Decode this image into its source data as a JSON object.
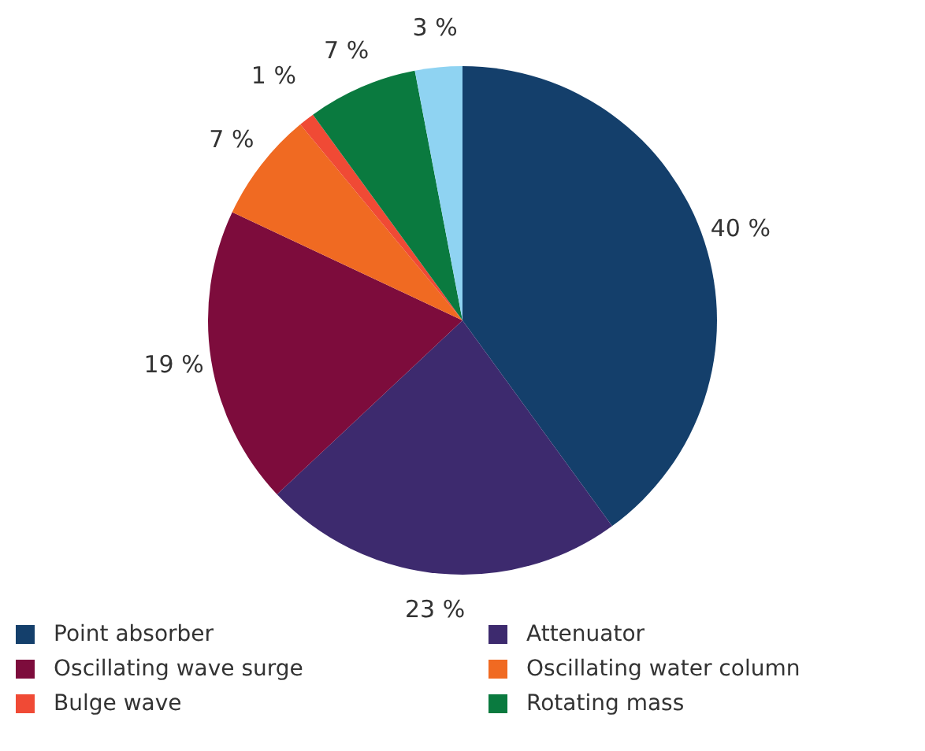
{
  "chart_data": {
    "type": "pie",
    "categories": [
      "Point absorber",
      "Attenuator",
      "Oscillating wave surge",
      "Oscillating water column",
      "Bulge wave",
      "Rotating mass",
      null
    ],
    "values": [
      40,
      23,
      19,
      7,
      1,
      7,
      3
    ],
    "colors": [
      "#143f6b",
      "#3d2a6e",
      "#7d0c3c",
      "#f06a22",
      "#f04a35",
      "#0a7a3f",
      "#8fd3f2"
    ],
    "value_labels": [
      "40 %",
      "23 %",
      "19 %",
      "7 %",
      "1 %",
      "7 %",
      "3 %"
    ],
    "legend": "bottom"
  }
}
